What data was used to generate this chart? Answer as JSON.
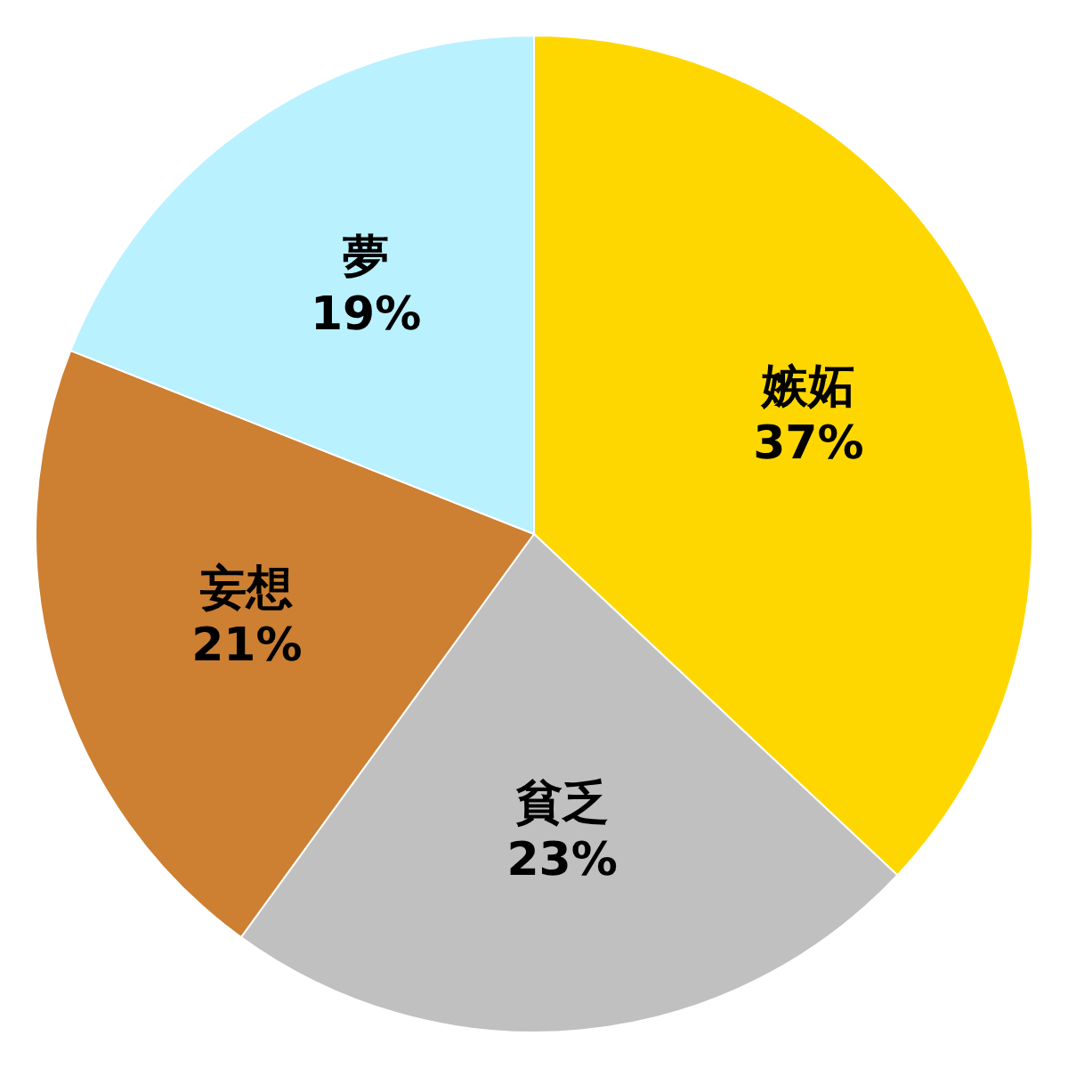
{
  "chart_data": {
    "type": "pie",
    "categories": [
      "嫉妬",
      "貧乏",
      "妄想",
      "夢"
    ],
    "values": [
      37,
      23,
      21,
      19
    ],
    "colors": [
      "#ffd700",
      "#c0c0c0",
      "#cd7f32",
      "#b9f1ff"
    ],
    "value_labels": [
      "37%",
      "23%",
      "21%",
      "19%"
    ]
  }
}
